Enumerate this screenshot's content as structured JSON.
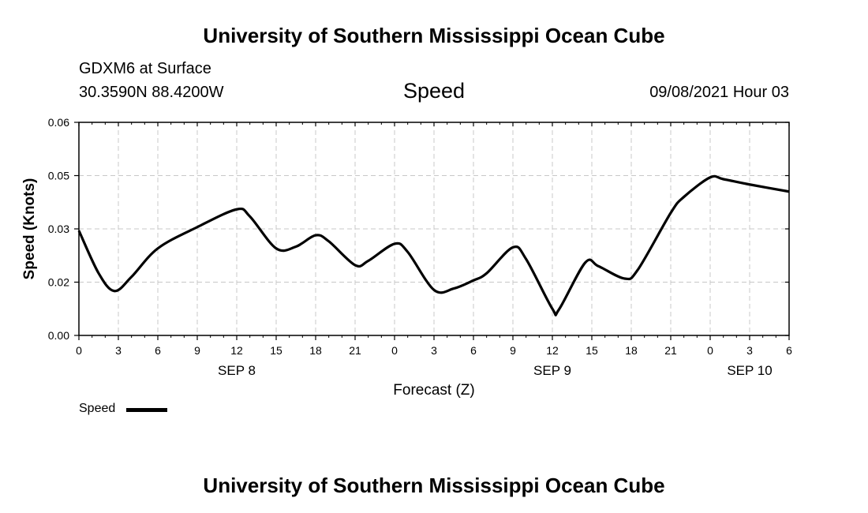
{
  "header": {
    "top_title": "University of Southern Mississippi Ocean Cube",
    "station": "GDXM6 at Surface",
    "coordinates": "30.3590N  88.4200W",
    "plot_title": "Speed",
    "datetime": "09/08/2021 Hour 03",
    "bottom_title": "University of Southern Mississippi Ocean Cube"
  },
  "legend": {
    "label": "Speed",
    "color": "#000000"
  },
  "chart_data": {
    "type": "line",
    "title": "Speed",
    "xlabel": "Forecast (Z)",
    "ylabel": "Speed (Knots)",
    "xlim": [
      0,
      54
    ],
    "ylim": [
      0,
      0.06
    ],
    "grid": true,
    "x_ticks": [
      0,
      3,
      6,
      9,
      12,
      15,
      18,
      21,
      24,
      27,
      30,
      33,
      36,
      39,
      42,
      45,
      48,
      51,
      54
    ],
    "x_tick_labels": [
      "0",
      "3",
      "6",
      "9",
      "12",
      "15",
      "18",
      "21",
      "0",
      "3",
      "6",
      "9",
      "12",
      "15",
      "18",
      "21",
      "0",
      "3",
      "6"
    ],
    "date_labels": [
      {
        "x": 12,
        "label": "SEP 8"
      },
      {
        "x": 36,
        "label": "SEP 9"
      },
      {
        "x": 51,
        "label": "SEP 10"
      }
    ],
    "y_ticks": [
      0,
      0.015,
      0.03,
      0.045,
      0.06
    ],
    "y_tick_labels": [
      "0.00",
      "0.02",
      "0.03",
      "0.05",
      "0.06"
    ],
    "series": [
      {
        "name": "Speed",
        "color": "#000000",
        "x": [
          0,
          1.5,
          2.7,
          4,
          6,
          9,
          12,
          13,
          15,
          16.5,
          18,
          19,
          21,
          22,
          24,
          25,
          27,
          28.5,
          30,
          31,
          33,
          34,
          36,
          36.5,
          38.5,
          39.5,
          41.5,
          42.5,
          45,
          46,
          48,
          49,
          51,
          54
        ],
        "y": [
          0.0295,
          0.0175,
          0.0125,
          0.0165,
          0.0245,
          0.0305,
          0.0355,
          0.0335,
          0.0245,
          0.025,
          0.0282,
          0.0265,
          0.0198,
          0.021,
          0.0258,
          0.0235,
          0.0128,
          0.0132,
          0.0155,
          0.0175,
          0.0248,
          0.0215,
          0.0075,
          0.0073,
          0.0205,
          0.0195,
          0.016,
          0.0185,
          0.0345,
          0.039,
          0.0445,
          0.044,
          0.0425,
          0.0405
        ]
      }
    ]
  }
}
